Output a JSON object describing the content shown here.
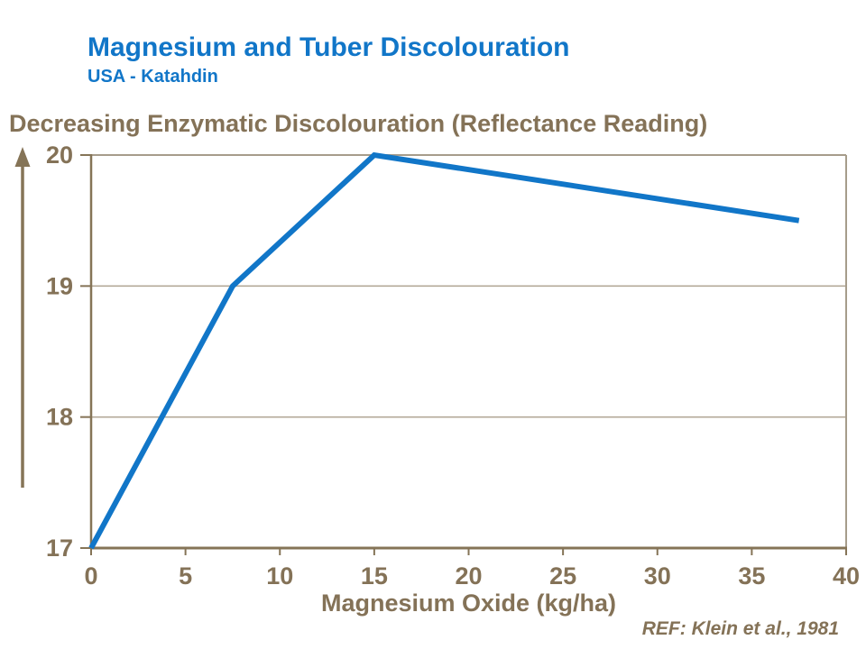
{
  "header": {
    "title": "Magnesium and Tuber Discolouration",
    "subtitle": "USA - Katahdin"
  },
  "axis_header": "Decreasing Enzymatic Discolouration (Reflectance Reading)",
  "footer": {
    "reference": "REF: Klein et al., 1981"
  },
  "colors": {
    "blue": "#1176C8",
    "text_brown": "#847257",
    "axis_brown": "#857457",
    "border_brown": "#A69C8B",
    "grid_brown": "#B4AA99"
  },
  "chart_data": {
    "type": "line",
    "title": "Magnesium and Tuber Discolouration",
    "subtitle": "USA - Katahdin",
    "xlabel": "Magnesium Oxide (kg/ha)",
    "ylabel": "Decreasing Enzymatic Discolouration (Reflectance Reading)",
    "reference": "REF: Klein et al., 1981",
    "xlim": [
      0,
      40
    ],
    "ylim": [
      17,
      20
    ],
    "x_ticks": [
      0,
      5,
      10,
      15,
      20,
      25,
      30,
      35,
      40
    ],
    "y_ticks": [
      17,
      18,
      19,
      20
    ],
    "grid": "horizontal-interior",
    "legend": "none",
    "line_color": "#1176C8",
    "line_width": 6,
    "series": [
      {
        "name": "Reflectance Reading",
        "x": [
          0,
          7.5,
          15,
          37.5
        ],
        "y": [
          17,
          19,
          20,
          19.5
        ]
      }
    ]
  }
}
